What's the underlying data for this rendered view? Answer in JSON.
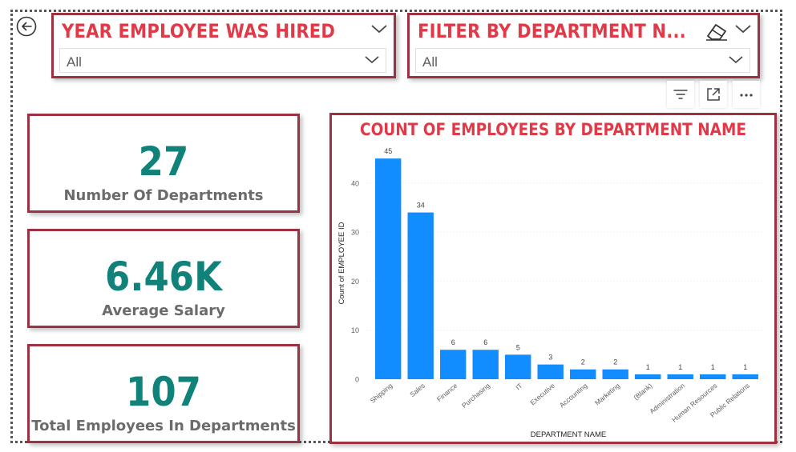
{
  "slicers": {
    "year": {
      "title": "YEAR EMPLOYEE WAS HIRED",
      "selected": "All"
    },
    "department": {
      "title": "FILTER BY DEPARTMENT N...",
      "selected": "All"
    }
  },
  "kpis": [
    {
      "value": "27",
      "label": "Number Of Departments"
    },
    {
      "value": "6.46K",
      "label": "Average Salary"
    },
    {
      "value": "107",
      "label": "Total Employees In Departments"
    }
  ],
  "colors": {
    "accent": "#e03a48",
    "border": "#9c3140",
    "kpi_value": "#11827a",
    "bar": "#118dff"
  },
  "icons": [
    "back-arrow-icon",
    "chevron-down-icon",
    "eraser-icon",
    "filter-icon",
    "focus-mode-icon",
    "more-options-icon"
  ],
  "chart_data": {
    "type": "bar",
    "title": "COUNT OF EMPLOYEES BY DEPARTMENT NAME",
    "xlabel": "DEPARTMENT NAME",
    "ylabel": "Count of EMPLOYEE ID",
    "categories": [
      "Shipping",
      "Sales",
      "Finance",
      "Purchasing",
      "IT",
      "Executive",
      "Accounting",
      "Marketing",
      "(Blank)",
      "Administration",
      "Human Resources",
      "Public Relations"
    ],
    "values": [
      45,
      34,
      6,
      6,
      5,
      3,
      2,
      2,
      1,
      1,
      1,
      1
    ],
    "ylim": [
      0,
      50
    ],
    "yticks": [
      0,
      10,
      20,
      30,
      40
    ],
    "grid": true,
    "data_labels": true
  }
}
